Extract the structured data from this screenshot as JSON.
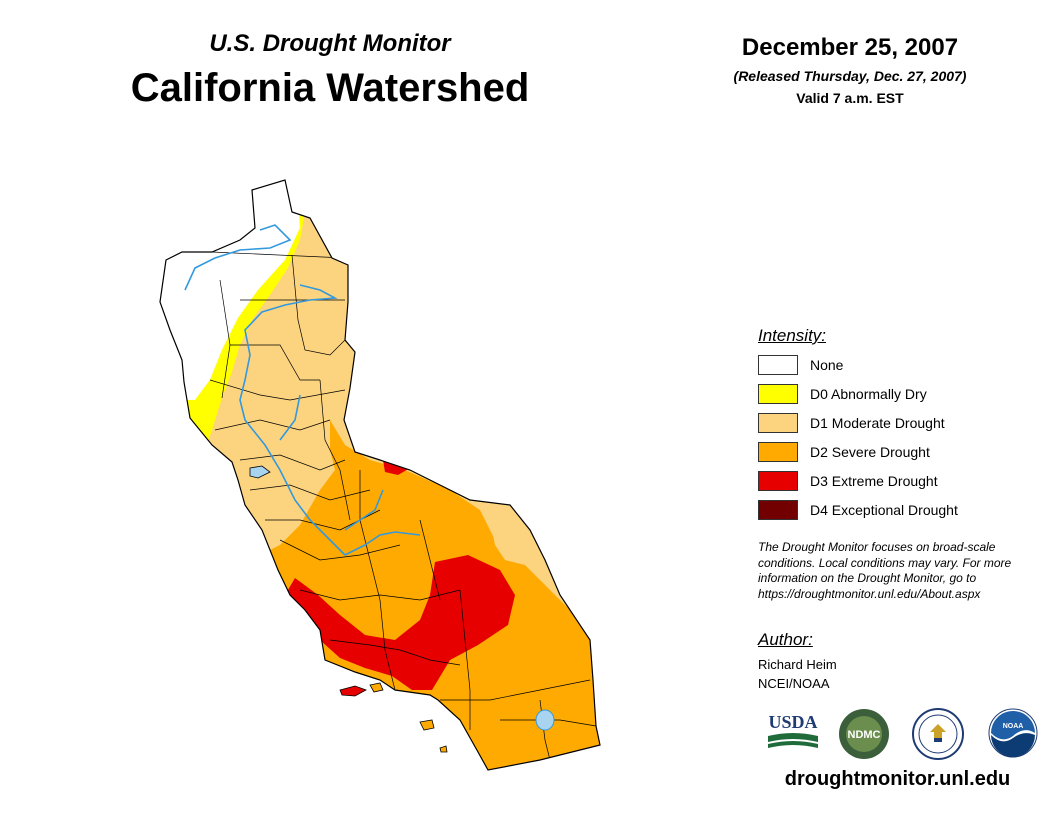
{
  "header": {
    "subtitle": "U.S. Drought Monitor",
    "title": "California Watershed",
    "date": "December 25, 2007",
    "released": "(Released Thursday, Dec. 27, 2007)",
    "valid": "Valid 7 a.m. EST"
  },
  "legend": {
    "heading": "Intensity:",
    "items": [
      {
        "label": "None",
        "color": "#ffffff"
      },
      {
        "label": "D0 Abnormally Dry",
        "color": "#ffff00"
      },
      {
        "label": "D1 Moderate Drought",
        "color": "#fcd37f"
      },
      {
        "label": "D2 Severe Drought",
        "color": "#ffaa00"
      },
      {
        "label": "D3 Extreme Drought",
        "color": "#e60000"
      },
      {
        "label": "D4 Exceptional Drought",
        "color": "#730000"
      }
    ]
  },
  "note": {
    "line1": "The Drought Monitor focuses on broad-scale",
    "line2": "conditions. Local conditions may vary. For more",
    "line3": "information on the Drought Monitor, go to",
    "line4": "https://droughtmonitor.unl.edu/About.aspx"
  },
  "author": {
    "heading": "Author:",
    "name": "Richard Heim",
    "org": "NCEI/NOAA"
  },
  "logos": {
    "usda": "USDA",
    "ndmc": "NDMC",
    "noaa": "NOAA"
  },
  "footer": {
    "url": "droughtmonitor.unl.edu"
  },
  "colors": {
    "river": "#3399dd",
    "boundary": "#000000"
  }
}
